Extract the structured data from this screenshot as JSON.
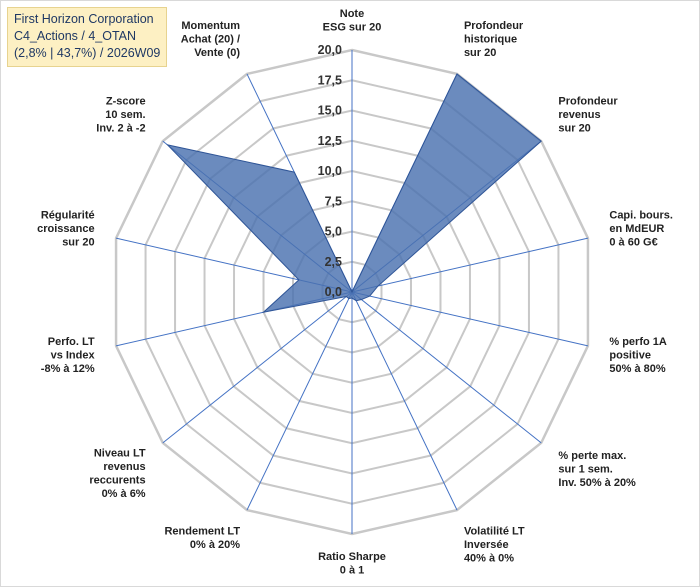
{
  "chart_data": {
    "type": "radar",
    "title_lines": [
      "First Horizon Corporation",
      "C4_Actions / 4_OTAN",
      "(2,8% | 43,7%) / 2026W09"
    ],
    "r_ticks": [
      "0,0",
      "2,5",
      "5,0",
      "7,5",
      "10,0",
      "12,5",
      "15,0",
      "17,5",
      "20,0"
    ],
    "r_range": [
      0,
      20
    ],
    "series_color": "#4a72b0",
    "grid_color": "#c8c8c8",
    "spoke_color": "#4472c4",
    "axes": [
      {
        "label": [
          "Note",
          "ESG sur 20"
        ],
        "value": 0
      },
      {
        "label": [
          "Profondeur",
          "historique",
          "sur 20"
        ],
        "value": 20
      },
      {
        "label": [
          "Profondeur",
          "revenus",
          "sur 20"
        ],
        "value": 20
      },
      {
        "label": [
          "Capi. bours.",
          "en MdEUR",
          "0 à 60 G€"
        ],
        "value": 2.2
      },
      {
        "label": [
          "% perfo 1A",
          "positive",
          "50% à 80%"
        ],
        "value": 1.5
      },
      {
        "label": [
          "% perte max.",
          "sur 1 sem.",
          "Inv. 50% à 20%"
        ],
        "value": 1.0
      },
      {
        "label": [
          "Volatilité LT",
          "Inversée",
          "40% à 0%"
        ],
        "value": 0.8
      },
      {
        "label": [
          "Ratio Sharpe",
          "0 à 1"
        ],
        "value": 0.5
      },
      {
        "label": [
          "Rendement LT",
          "0% à 20%"
        ],
        "value": 0.6
      },
      {
        "label": [
          "Niveau LT",
          "revenus",
          "reccurents",
          "0% à 6%"
        ],
        "value": 0.6
      },
      {
        "label": [
          "Perfo. LT",
          "vs Index",
          "-8% à 12%"
        ],
        "value": 7.5
      },
      {
        "label": [
          "Régularité",
          "croissance",
          "sur 20"
        ],
        "value": 4.5
      },
      {
        "label": [
          "Z-score",
          "10 sem.",
          "Inv. 2 à -2"
        ],
        "value": 19.5
      },
      {
        "label": [
          "Momentum",
          "Achat (20) /",
          "Vente (0)"
        ],
        "value": 11.0
      }
    ]
  }
}
